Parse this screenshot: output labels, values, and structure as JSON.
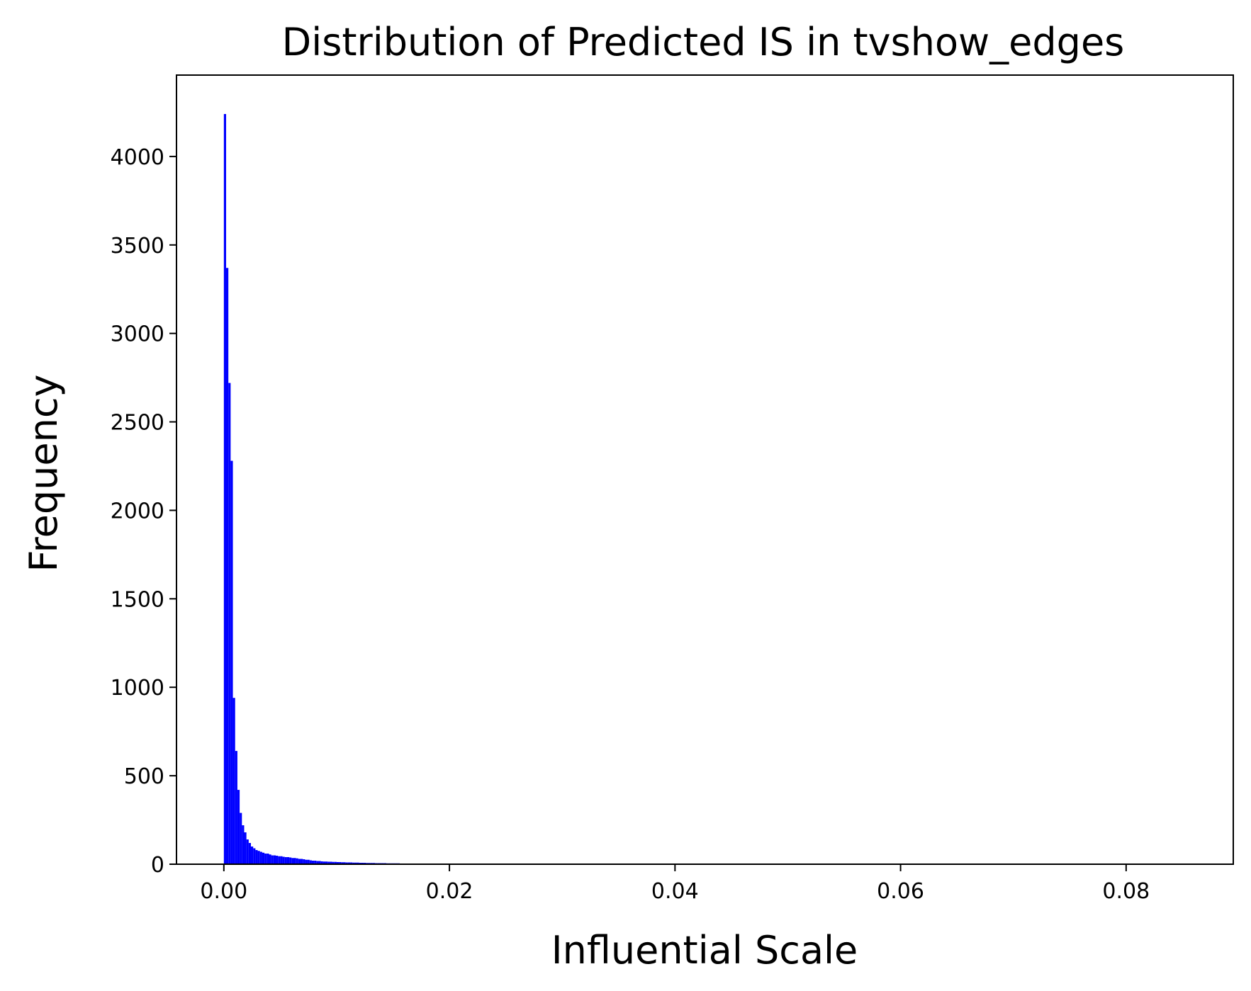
{
  "chart_data": {
    "type": "bar",
    "title": "Distribution of Predicted IS in tvshow_edges",
    "xlabel": "Influential Scale",
    "ylabel": "Frequency",
    "xlim": [
      -0.0042,
      0.0895
    ],
    "ylim": [
      0,
      4460
    ],
    "xticks": [
      {
        "value": 0.0,
        "label": "0.00"
      },
      {
        "value": 0.02,
        "label": "0.02"
      },
      {
        "value": 0.04,
        "label": "0.04"
      },
      {
        "value": 0.06,
        "label": "0.06"
      },
      {
        "value": 0.08,
        "label": "0.08"
      }
    ],
    "yticks": [
      {
        "value": 0,
        "label": "0"
      },
      {
        "value": 500,
        "label": "500"
      },
      {
        "value": 1000,
        "label": "1000"
      },
      {
        "value": 1500,
        "label": "1500"
      },
      {
        "value": 2000,
        "label": "2000"
      },
      {
        "value": 2500,
        "label": "2500"
      },
      {
        "value": 3000,
        "label": "3000"
      },
      {
        "value": 3500,
        "label": "3500"
      },
      {
        "value": 4000,
        "label": "4000"
      }
    ],
    "bar_color": "#0000ff",
    "grid": false,
    "bin_width": 0.0002,
    "bin_start": 0.0,
    "values": [
      4240,
      3370,
      2720,
      2280,
      940,
      640,
      420,
      290,
      220,
      180,
      140,
      120,
      100,
      90,
      80,
      75,
      70,
      65,
      60,
      60,
      55,
      50,
      50,
      48,
      45,
      45,
      42,
      40,
      40,
      38,
      35,
      35,
      33,
      30,
      30,
      28,
      25,
      25,
      22,
      20,
      20,
      18,
      18,
      16,
      15,
      15,
      14,
      14,
      13,
      13,
      12,
      12,
      11,
      11,
      10,
      10,
      10,
      9,
      9,
      9,
      8,
      8,
      8,
      7,
      7,
      7,
      7,
      6,
      6,
      6,
      6,
      6,
      5,
      5,
      5,
      5,
      5,
      5,
      4,
      4,
      4,
      4,
      4,
      4,
      4,
      4,
      3,
      3,
      3,
      3,
      3,
      3,
      3,
      3,
      3,
      3,
      2,
      2,
      2,
      2,
      2,
      2,
      2,
      2,
      2,
      2,
      2,
      2,
      2,
      2,
      2,
      2,
      2,
      2,
      1,
      1,
      1,
      1,
      1,
      1
    ]
  }
}
